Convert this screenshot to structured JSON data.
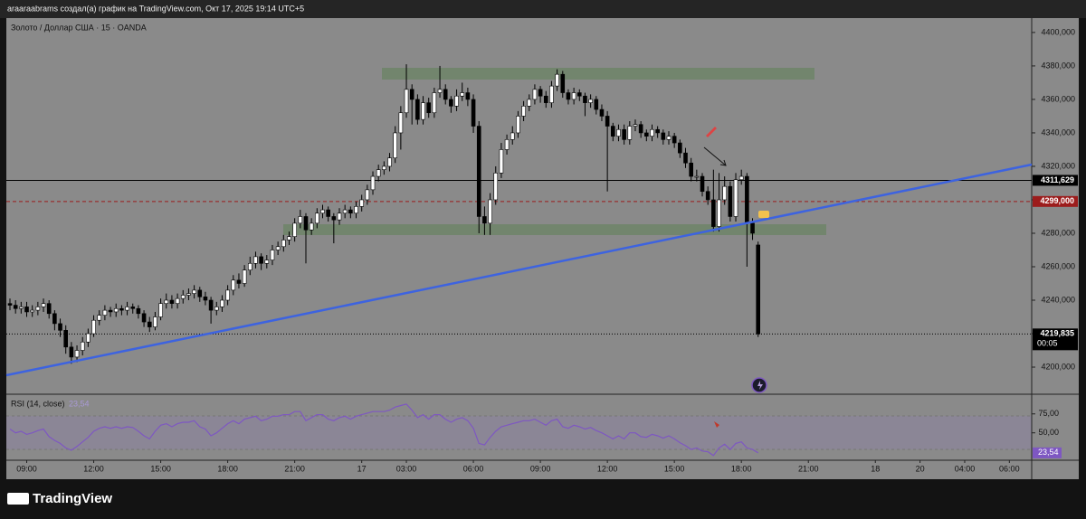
{
  "header": {
    "caption": "araaraabrams создал(а) график на TradingView.com, Окт 17, 2025 19:14 UTC+5"
  },
  "footer": {
    "logo": "TradingView"
  },
  "chart_data": [
    {
      "type": "candlestick",
      "title": "Золото / Доллар США · 15 · OANDA",
      "xlim": [
        -0.65,
        183
      ],
      "ylim": [
        4183.8,
        4408.6
      ],
      "grid": false,
      "up_color": "#ffffff",
      "down_color": "#000000",
      "yticks": [
        {
          "value": 4200,
          "label": "4200,000"
        },
        {
          "value": 4220,
          "label": "4220,000"
        },
        {
          "value": 4240,
          "label": "4240,000"
        },
        {
          "value": 4260,
          "label": "4260,000"
        },
        {
          "value": 4280,
          "label": "4280,000"
        },
        {
          "value": 4300,
          "label": "4300,000"
        },
        {
          "value": 4320,
          "label": "4320,000"
        },
        {
          "value": 4340,
          "label": "4340,000"
        },
        {
          "value": 4360,
          "label": "4360,000"
        },
        {
          "value": 4380,
          "label": "4380,000"
        },
        {
          "value": 4400,
          "label": "4400,000"
        }
      ],
      "price_lines": [
        {
          "value": 4311.629,
          "label": "4311,629",
          "color": "#000000"
        },
        {
          "value": 4299,
          "label": "4299,000",
          "color": "#9c1c1c"
        },
        {
          "value": 4219.835,
          "label": "4219,835",
          "color": "#000000"
        }
      ],
      "countdown": "00:05",
      "ohlc": [
        [
          4238,
          4241,
          4234,
          4237
        ],
        [
          4237,
          4240,
          4232,
          4235
        ],
        [
          4235,
          4239,
          4232,
          4236
        ],
        [
          4236,
          4239,
          4230,
          4233
        ],
        [
          4233,
          4237,
          4230,
          4234
        ],
        [
          4234,
          4239,
          4231,
          4236
        ],
        [
          4236,
          4241,
          4233,
          4238
        ],
        [
          4238,
          4240,
          4229,
          4232
        ],
        [
          4232,
          4234,
          4222,
          4226
        ],
        [
          4226,
          4229,
          4218,
          4222
        ],
        [
          4222,
          4225,
          4208,
          4212
        ],
        [
          4212,
          4215,
          4202,
          4206
        ],
        [
          4206,
          4213,
          4203,
          4210
        ],
        [
          4210,
          4218,
          4207,
          4215
        ],
        [
          4215,
          4223,
          4212,
          4220
        ],
        [
          4220,
          4231,
          4218,
          4228
        ],
        [
          4228,
          4234,
          4225,
          4231
        ],
        [
          4231,
          4237,
          4228,
          4234
        ],
        [
          4234,
          4236,
          4230,
          4233
        ],
        [
          4233,
          4238,
          4230,
          4235
        ],
        [
          4235,
          4237,
          4231,
          4234
        ],
        [
          4234,
          4239,
          4231,
          4236
        ],
        [
          4236,
          4238,
          4232,
          4235
        ],
        [
          4235,
          4237,
          4229,
          4232
        ],
        [
          4232,
          4234,
          4224,
          4227
        ],
        [
          4227,
          4230,
          4221,
          4224
        ],
        [
          4224,
          4233,
          4222,
          4230
        ],
        [
          4230,
          4241,
          4228,
          4238
        ],
        [
          4238,
          4244,
          4235,
          4240
        ],
        [
          4240,
          4243,
          4235,
          4238
        ],
        [
          4238,
          4244,
          4235,
          4241
        ],
        [
          4241,
          4246,
          4238,
          4243
        ],
        [
          4243,
          4247,
          4240,
          4244
        ],
        [
          4244,
          4249,
          4241,
          4246
        ],
        [
          4246,
          4248,
          4239,
          4242
        ],
        [
          4242,
          4245,
          4237,
          4240
        ],
        [
          4240,
          4242,
          4226,
          4234
        ],
        [
          4234,
          4239,
          4231,
          4236
        ],
        [
          4236,
          4243,
          4233,
          4240
        ],
        [
          4240,
          4249,
          4237,
          4246
        ],
        [
          4246,
          4255,
          4243,
          4252
        ],
        [
          4252,
          4256,
          4247,
          4250
        ],
        [
          4250,
          4261,
          4248,
          4258
        ],
        [
          4258,
          4266,
          4255,
          4262
        ],
        [
          4262,
          4269,
          4259,
          4266
        ],
        [
          4266,
          4268,
          4258,
          4262
        ],
        [
          4262,
          4267,
          4259,
          4264
        ],
        [
          4264,
          4273,
          4261,
          4270
        ],
        [
          4270,
          4275,
          4267,
          4272
        ],
        [
          4272,
          4279,
          4269,
          4276
        ],
        [
          4276,
          4281,
          4273,
          4278
        ],
        [
          4278,
          4289,
          4275,
          4286
        ],
        [
          4286,
          4294,
          4283,
          4290
        ],
        [
          4290,
          4292,
          4262,
          4282
        ],
        [
          4282,
          4289,
          4279,
          4286
        ],
        [
          4286,
          4295,
          4283,
          4292
        ],
        [
          4292,
          4297,
          4289,
          4294
        ],
        [
          4294,
          4296,
          4287,
          4290
        ],
        [
          4290,
          4292,
          4274,
          4288
        ],
        [
          4288,
          4295,
          4285,
          4292
        ],
        [
          4292,
          4297,
          4289,
          4294
        ],
        [
          4294,
          4296,
          4289,
          4292
        ],
        [
          4292,
          4299,
          4289,
          4296
        ],
        [
          4296,
          4303,
          4293,
          4300
        ],
        [
          4300,
          4309,
          4297,
          4306
        ],
        [
          4306,
          4317,
          4303,
          4314
        ],
        [
          4314,
          4321,
          4311,
          4318
        ],
        [
          4318,
          4323,
          4315,
          4320
        ],
        [
          4320,
          4328,
          4317,
          4325
        ],
        [
          4325,
          4344,
          4322,
          4340
        ],
        [
          4340,
          4356,
          4330,
          4352
        ],
        [
          4352,
          4381,
          4349,
          4366
        ],
        [
          4366,
          4369,
          4345,
          4360
        ],
        [
          4360,
          4363,
          4345,
          4348
        ],
        [
          4348,
          4362,
          4345,
          4358
        ],
        [
          4358,
          4361,
          4349,
          4352
        ],
        [
          4352,
          4367,
          4349,
          4364
        ],
        [
          4364,
          4380,
          4361,
          4366
        ],
        [
          4366,
          4369,
          4357,
          4360
        ],
        [
          4360,
          4362,
          4352,
          4356
        ],
        [
          4356,
          4366,
          4353,
          4362
        ],
        [
          4362,
          4370,
          4359,
          4364
        ],
        [
          4364,
          4367,
          4356,
          4360
        ],
        [
          4360,
          4363,
          4340,
          4344
        ],
        [
          4344,
          4347,
          4280,
          4290
        ],
        [
          4290,
          4296,
          4279,
          4286
        ],
        [
          4286,
          4304,
          4279,
          4300
        ],
        [
          4300,
          4320,
          4297,
          4316
        ],
        [
          4316,
          4334,
          4313,
          4330
        ],
        [
          4330,
          4339,
          4327,
          4336
        ],
        [
          4336,
          4344,
          4333,
          4340
        ],
        [
          4340,
          4353,
          4337,
          4350
        ],
        [
          4350,
          4359,
          4347,
          4356
        ],
        [
          4356,
          4363,
          4353,
          4360
        ],
        [
          4360,
          4369,
          4357,
          4366
        ],
        [
          4366,
          4368,
          4358,
          4362
        ],
        [
          4362,
          4365,
          4355,
          4358
        ],
        [
          4358,
          4371,
          4355,
          4368
        ],
        [
          4368,
          4378,
          4365,
          4375
        ],
        [
          4375,
          4377,
          4361,
          4364
        ],
        [
          4364,
          4366,
          4357,
          4360
        ],
        [
          4360,
          4367,
          4357,
          4364
        ],
        [
          4364,
          4366,
          4359,
          4362
        ],
        [
          4362,
          4364,
          4350,
          4358
        ],
        [
          4358,
          4363,
          4355,
          4360
        ],
        [
          4360,
          4362,
          4351,
          4354
        ],
        [
          4354,
          4357,
          4347,
          4350
        ],
        [
          4350,
          4353,
          4305,
          4344
        ],
        [
          4344,
          4346,
          4335,
          4338
        ],
        [
          4338,
          4345,
          4335,
          4342
        ],
        [
          4342,
          4345,
          4333,
          4336
        ],
        [
          4336,
          4347,
          4333,
          4344
        ],
        [
          4344,
          4348,
          4341,
          4345
        ],
        [
          4345,
          4347,
          4337,
          4340
        ],
        [
          4340,
          4342,
          4335,
          4338
        ],
        [
          4338,
          4345,
          4335,
          4342
        ],
        [
          4342,
          4344,
          4337,
          4340
        ],
        [
          4340,
          4342,
          4333,
          4336
        ],
        [
          4336,
          4341,
          4333,
          4338
        ],
        [
          4338,
          4340,
          4331,
          4334
        ],
        [
          4334,
          4336,
          4325,
          4328
        ],
        [
          4328,
          4331,
          4319,
          4322
        ],
        [
          4322,
          4325,
          4311,
          4314
        ],
        [
          4314,
          4318,
          4311,
          4314
        ],
        [
          4314,
          4316,
          4302,
          4305
        ],
        [
          4305,
          4308,
          4297,
          4300
        ],
        [
          4300,
          4318,
          4281,
          4284
        ],
        [
          4284,
          4316,
          4281,
          4300
        ],
        [
          4300,
          4314,
          4297,
          4308
        ],
        [
          4308,
          4311,
          4287,
          4290
        ],
        [
          4290,
          4316,
          4287,
          4312
        ],
        [
          4312,
          4318,
          4309,
          4314
        ],
        [
          4314,
          4316,
          4260,
          4286
        ],
        [
          4286,
          4289,
          4276,
          4280
        ],
        [
          4273,
          4275,
          4218,
          4219.835
        ]
      ]
    },
    {
      "type": "line",
      "title": "RSI (14, close)",
      "color": "#7e57c2",
      "xlim": [
        -0.65,
        183
      ],
      "ylim": [
        15,
        95
      ],
      "yticks": [
        {
          "value": 75,
          "label": "75,00"
        },
        {
          "value": 50,
          "label": "50,00"
        }
      ],
      "last_value_label": "23,54",
      "xticks": [
        {
          "value": 3,
          "label": "09:00"
        },
        {
          "value": 15,
          "label": "12:00"
        },
        {
          "value": 27,
          "label": "15:00"
        },
        {
          "value": 39,
          "label": "18:00"
        },
        {
          "value": 51,
          "label": "21:00"
        },
        {
          "value": 63,
          "label": "17"
        },
        {
          "value": 71,
          "label": "03:00"
        },
        {
          "value": 83,
          "label": "06:00"
        },
        {
          "value": 95,
          "label": "09:00"
        },
        {
          "value": 107,
          "label": "12:00"
        },
        {
          "value": 119,
          "label": "15:00"
        },
        {
          "value": 131,
          "label": "18:00"
        },
        {
          "value": 143,
          "label": "21:00"
        },
        {
          "value": 155,
          "label": "18"
        },
        {
          "value": 163,
          "label": "20"
        },
        {
          "value": 171,
          "label": "04:00"
        },
        {
          "value": 179,
          "label": "06:00"
        }
      ],
      "values": [
        55,
        50,
        52,
        48,
        50,
        53,
        55,
        45,
        40,
        36,
        30,
        27,
        32,
        38,
        44,
        52,
        56,
        58,
        56,
        58,
        56,
        58,
        57,
        52,
        46,
        42,
        52,
        60,
        62,
        58,
        62,
        64,
        64,
        66,
        58,
        55,
        46,
        50,
        56,
        62,
        66,
        62,
        68,
        70,
        72,
        66,
        68,
        72,
        72,
        74,
        74,
        78,
        78,
        66,
        70,
        74,
        74,
        68,
        66,
        70,
        72,
        68,
        72,
        74,
        76,
        78,
        78,
        78,
        80,
        84,
        86,
        88,
        80,
        70,
        74,
        68,
        74,
        74,
        68,
        64,
        68,
        70,
        66,
        56,
        36,
        34,
        44,
        52,
        58,
        60,
        62,
        64,
        66,
        66,
        68,
        64,
        60,
        66,
        68,
        58,
        56,
        60,
        58,
        55,
        57,
        53,
        50,
        46,
        42,
        46,
        42,
        50,
        50,
        45,
        44,
        48,
        46,
        43,
        46,
        42,
        37,
        33,
        28,
        30,
        26,
        25,
        20,
        30,
        35,
        28,
        36,
        38,
        30,
        28,
        23.54
      ]
    }
  ]
}
